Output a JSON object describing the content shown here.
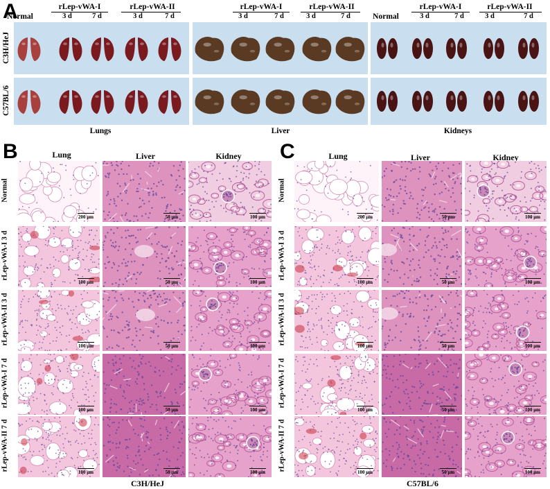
{
  "panels": {
    "a": "A",
    "b": "B",
    "c": "C"
  },
  "panel_a": {
    "normal": "Normal",
    "group1": "rLep-vWA-I",
    "group2": "rLep-vWA-II",
    "day3": "3 d",
    "day7": "7 d",
    "row_c3h": "C3H/HeJ",
    "row_c57": "C57BL/6",
    "organ_lungs": "Lungs",
    "organ_liver": "Liver",
    "organ_kidneys": "Kidneys"
  },
  "histology": {
    "col_lung": "Lung",
    "col_liver": "Liver",
    "col_kidney": "Kidney",
    "rows": [
      "Normal",
      "rLep-vWA-I 3 d",
      "rLep-vWA-II 3 d",
      "rLep-vWA-I 7 d",
      "rLep-vWA-II 7 d"
    ],
    "strain_b": "C3H/HeJ",
    "strain_c": "C57BL/6",
    "scale_200": "200 μm",
    "scale_100": "100 μm",
    "scale_50": "50 μm"
  },
  "colors": {
    "strip": "#c9dff0",
    "lung_tissue": "#f1c4dc",
    "liver_tissue": "#d87fae",
    "kidney_tissue": "#e9a7cf",
    "nuclei": "#6a4a9a",
    "organ_lung": "#7a1a1e",
    "organ_liver": "#5a3a22",
    "organ_kidney": "#4a1414"
  }
}
